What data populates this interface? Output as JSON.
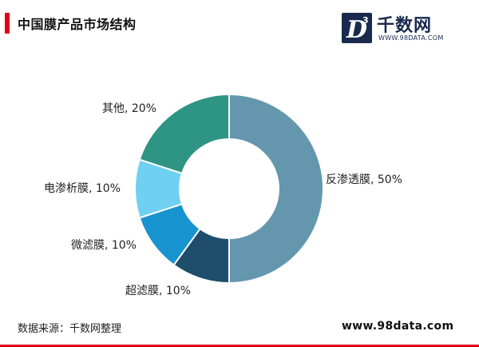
{
  "header": {
    "title": "中国膜产品市场结构",
    "accent_color": "#e0001b"
  },
  "logo": {
    "mark_letter": "D",
    "mark_superscript": "3",
    "name": "千数网",
    "url": "WWW.98DATA.COM",
    "color": "#1a2a4f"
  },
  "footer": {
    "source": "数据来源：千数网整理",
    "website": "www.98data.com"
  },
  "chart_data": {
    "type": "pie",
    "donut": true,
    "categories": [
      "反渗透膜",
      "超滤膜",
      "微滤膜",
      "电渗析膜",
      "其他"
    ],
    "values": [
      50,
      10,
      10,
      10,
      20
    ],
    "unit": "%",
    "colors": [
      "#6497ad",
      "#1f4e6c",
      "#1793cf",
      "#70d0f2",
      "#2e9483"
    ],
    "labels": [
      "反渗透膜, 50%",
      "超滤膜, 10%",
      "微滤膜, 10%",
      "电渗析膜, 10%",
      "其他, 20%"
    ]
  }
}
